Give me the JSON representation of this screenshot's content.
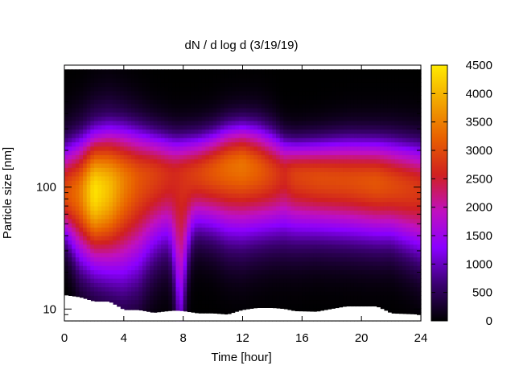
{
  "chart_data": {
    "type": "heatmap",
    "title": "dN / d log d (3/19/19)",
    "xlabel": "Time [hour]",
    "ylabel": "Particle size [nm]",
    "xlim": [
      0,
      24
    ],
    "ylim": [
      8,
      1000
    ],
    "y_scale": "log",
    "x_ticks": [
      0,
      4,
      8,
      12,
      16,
      20,
      24
    ],
    "x_tick_labels": [
      "0",
      "4",
      "8",
      "12",
      "16",
      "20",
      "24"
    ],
    "y_ticks": [
      10,
      100
    ],
    "y_tick_labels": [
      "10",
      "100"
    ],
    "colorbar": {
      "range": [
        0,
        4500
      ],
      "ticks": [
        0,
        500,
        1000,
        1500,
        2000,
        2500,
        3000,
        3500,
        4000,
        4500
      ],
      "tick_labels": [
        "0",
        "500",
        "1000",
        "1500",
        "2000",
        "2500",
        "3000",
        "3500",
        "4000",
        "4500"
      ],
      "palette": [
        "#000000",
        "#3a0070",
        "#8a00ff",
        "#c010c0",
        "#d02020",
        "#e86000",
        "#f2a500",
        "#ffea00"
      ]
    },
    "profile_hours": [
      0,
      1,
      2,
      3,
      4,
      5,
      6,
      7,
      7.5,
      8,
      9,
      10,
      11,
      12,
      13,
      14,
      14.8,
      15.5,
      17,
      19,
      21,
      22,
      24
    ],
    "peak_concentration": [
      3000,
      3400,
      4450,
      4100,
      3500,
      3100,
      2900,
      2700,
      2650,
      2750,
      2900,
      3100,
      3300,
      3400,
      3200,
      2900,
      2650,
      2900,
      3000,
      3000,
      3100,
      3000,
      2800
    ],
    "peak_diameter_nm": [
      88,
      90,
      92,
      98,
      110,
      118,
      125,
      125,
      125,
      125,
      128,
      135,
      145,
      150,
      140,
      130,
      128,
      125,
      120,
      115,
      110,
      105,
      95
    ],
    "upper_edge_nm": [
      180,
      200,
      220,
      240,
      250,
      245,
      235,
      225,
      220,
      220,
      225,
      240,
      265,
      275,
      265,
      240,
      215,
      205,
      205,
      210,
      205,
      200,
      185
    ],
    "lower_tail_nm": [
      45,
      32,
      30,
      28,
      26,
      28,
      38,
      45,
      48,
      52,
      56,
      55,
      52,
      52,
      52,
      51,
      50,
      50,
      50,
      48,
      46,
      45,
      35
    ],
    "lower_dip_hours": [
      7.8
    ],
    "lower_dip_min_nm": [
      13
    ],
    "cutoff_nm": [
      13,
      12.5,
      11.5,
      11.5,
      9.8,
      9.8,
      9.3,
      9.6,
      9.7,
      9.6,
      9.2,
      9.2,
      9.0,
      9.8,
      10.2,
      10.2,
      10.0,
      9.6,
      9.5,
      10.5,
      10.5,
      9.2,
      9.0
    ]
  }
}
